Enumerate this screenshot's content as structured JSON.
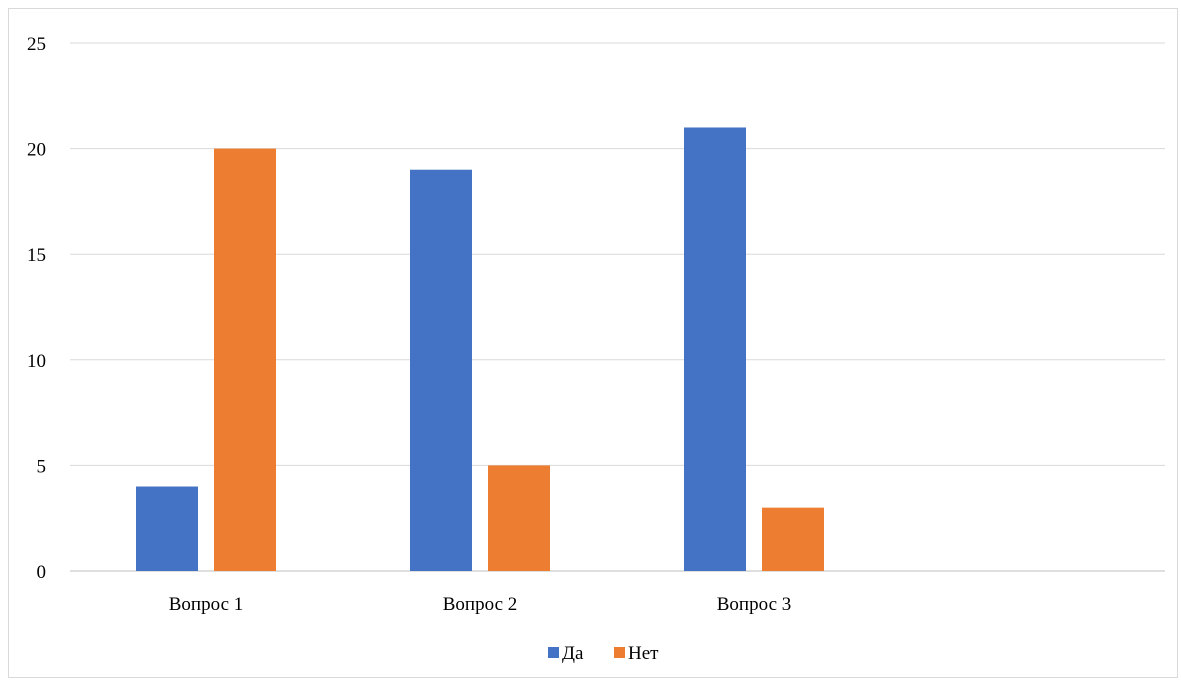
{
  "chart_data": {
    "type": "bar",
    "categories": [
      "Вопрос 1",
      "Вопрос 2",
      "Вопрос 3"
    ],
    "series": [
      {
        "name": "Да",
        "values": [
          4,
          19,
          21
        ],
        "color": "#4472C4"
      },
      {
        "name": "Нет",
        "values": [
          20,
          5,
          3
        ],
        "color": "#ED7D31"
      }
    ],
    "yticks": [
      "0",
      "5",
      "10",
      "15",
      "20",
      "25"
    ],
    "ylim": [
      0,
      25
    ],
    "grid": true,
    "legend": "bottom-center",
    "title": "",
    "xlabel": "",
    "ylabel": ""
  }
}
